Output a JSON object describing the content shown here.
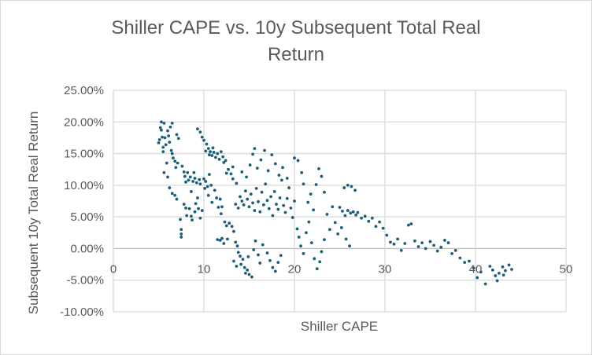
{
  "chart_data": {
    "type": "scatter",
    "title": "Shiller CAPE vs. 10y Subsequent Total Real Return",
    "title_lines": [
      "Shiller CAPE vs. 10y Subsequent Total Real",
      "Return"
    ],
    "xlabel": "Shiller CAPE",
    "ylabel": "Subsequent 10y Total Real Return",
    "xlim": [
      0,
      50
    ],
    "ylim": [
      -10,
      25
    ],
    "x_ticks": [
      "0",
      "10",
      "20",
      "30",
      "40",
      "50"
    ],
    "y_ticks": [
      "-10.00%",
      "-5.00%",
      "0.00%",
      "5.00%",
      "10.00%",
      "15.00%",
      "20.00%",
      "25.00%"
    ],
    "grid": true,
    "legend": "none",
    "color": "#1b5e7b",
    "series": [
      {
        "name": "Subsequent 10y Total Real Return",
        "points": [
          [
            5.0,
            16.7
          ],
          [
            5.1,
            17.2
          ],
          [
            5.2,
            19.1
          ],
          [
            5.3,
            20.0
          ],
          [
            5.3,
            18.7
          ],
          [
            5.4,
            17.6
          ],
          [
            5.5,
            16.0
          ],
          [
            5.5,
            15.3
          ],
          [
            5.6,
            19.8
          ],
          [
            5.7,
            17.5
          ],
          [
            5.8,
            16.4
          ],
          [
            5.9,
            13.5
          ],
          [
            5.6,
            12.0
          ],
          [
            6.0,
            18.6
          ],
          [
            6.1,
            17.8
          ],
          [
            6.2,
            16.8
          ],
          [
            6.3,
            19.2
          ],
          [
            6.5,
            19.8
          ],
          [
            6.4,
            15.5
          ],
          [
            6.5,
            15.0
          ],
          [
            6.6,
            14.3
          ],
          [
            6.8,
            13.8
          ],
          [
            6.9,
            12.8
          ],
          [
            7.0,
            18.0
          ],
          [
            7.2,
            17.4
          ],
          [
            7.1,
            13.5
          ],
          [
            6.0,
            11.3
          ],
          [
            6.2,
            9.6
          ],
          [
            6.5,
            8.7
          ],
          [
            6.8,
            8.4
          ],
          [
            7.0,
            7.8
          ],
          [
            7.4,
            4.6
          ],
          [
            7.5,
            3.0
          ],
          [
            7.5,
            2.3
          ],
          [
            7.5,
            1.8
          ],
          [
            7.6,
            13.0
          ],
          [
            7.8,
            12.1
          ],
          [
            7.9,
            11.4
          ],
          [
            8.0,
            10.5
          ],
          [
            8.2,
            12.0
          ],
          [
            8.3,
            10.8
          ],
          [
            8.5,
            11.3
          ],
          [
            8.6,
            9.0
          ],
          [
            8.8,
            10.6
          ],
          [
            8.9,
            12.0
          ],
          [
            9.0,
            11.1
          ],
          [
            9.2,
            10.4
          ],
          [
            9.3,
            8.0
          ],
          [
            9.5,
            10.9
          ],
          [
            9.6,
            10.2
          ],
          [
            7.8,
            7.0
          ],
          [
            8.0,
            6.4
          ],
          [
            8.1,
            5.2
          ],
          [
            8.4,
            6.3
          ],
          [
            8.6,
            5.1
          ],
          [
            8.7,
            4.5
          ],
          [
            9.0,
            5.8
          ],
          [
            9.1,
            7.1
          ],
          [
            9.4,
            6.3
          ],
          [
            9.6,
            4.8
          ],
          [
            9.8,
            6.0
          ],
          [
            10.0,
            11.0
          ],
          [
            10.1,
            9.5
          ],
          [
            10.2,
            10.6
          ],
          [
            10.4,
            9.8
          ],
          [
            10.5,
            8.4
          ],
          [
            10.6,
            11.7
          ],
          [
            10.8,
            10.0
          ],
          [
            10.9,
            7.3
          ],
          [
            11.2,
            9.2
          ],
          [
            11.4,
            8.0
          ],
          [
            11.6,
            6.5
          ],
          [
            11.8,
            7.8
          ],
          [
            11.9,
            5.5
          ],
          [
            12.0,
            6.6
          ],
          [
            9.3,
            18.9
          ],
          [
            9.6,
            18.4
          ],
          [
            9.8,
            17.6
          ],
          [
            10.0,
            17.1
          ],
          [
            10.3,
            16.5
          ],
          [
            10.5,
            15.8
          ],
          [
            10.7,
            15.3
          ],
          [
            10.9,
            14.7
          ],
          [
            11.1,
            15.2
          ],
          [
            11.3,
            14.4
          ],
          [
            11.5,
            15.0
          ],
          [
            11.7,
            14.1
          ],
          [
            11.9,
            15.3
          ],
          [
            12.1,
            14.5
          ],
          [
            12.2,
            13.6
          ],
          [
            10.2,
            15.4
          ],
          [
            10.6,
            14.8
          ],
          [
            11.0,
            15.9
          ],
          [
            12.4,
            13.9
          ],
          [
            12.5,
            11.9
          ],
          [
            12.7,
            12.5
          ],
          [
            13.0,
            11.8
          ],
          [
            13.2,
            12.9
          ],
          [
            12.3,
            4.2
          ],
          [
            12.5,
            3.6
          ],
          [
            12.8,
            4.0
          ],
          [
            13.1,
            3.5
          ],
          [
            13.3,
            2.7
          ],
          [
            12.0,
            1.6
          ],
          [
            11.8,
            1.3
          ],
          [
            12.2,
            0.8
          ],
          [
            12.6,
            1.5
          ],
          [
            11.5,
            1.4
          ],
          [
            13.5,
            1.0
          ],
          [
            13.7,
            0.4
          ],
          [
            13.8,
            -0.6
          ],
          [
            14.0,
            -1.2
          ],
          [
            14.1,
            -2.5
          ],
          [
            14.3,
            -1.7
          ],
          [
            14.5,
            -3.0
          ],
          [
            14.6,
            -3.9
          ],
          [
            14.8,
            -3.4
          ],
          [
            15.0,
            -4.1
          ],
          [
            15.3,
            -4.5
          ],
          [
            13.3,
            -2.0
          ],
          [
            13.6,
            -2.8
          ],
          [
            14.9,
            -1.3
          ],
          [
            15.5,
            -0.2
          ],
          [
            15.7,
            1.2
          ],
          [
            16.0,
            -1.0
          ],
          [
            16.2,
            -2.3
          ],
          [
            16.5,
            0.6
          ],
          [
            17.0,
            -0.7
          ],
          [
            17.3,
            -1.9
          ],
          [
            17.6,
            -3.0
          ],
          [
            17.9,
            -3.6
          ],
          [
            18.2,
            -2.2
          ],
          [
            18.5,
            -1.1
          ],
          [
            13.5,
            7.0
          ],
          [
            13.8,
            6.4
          ],
          [
            14.0,
            8.2
          ],
          [
            14.2,
            7.5
          ],
          [
            14.4,
            6.9
          ],
          [
            14.6,
            9.1
          ],
          [
            14.8,
            7.8
          ],
          [
            15.0,
            6.6
          ],
          [
            15.2,
            8.6
          ],
          [
            15.4,
            7.2
          ],
          [
            15.6,
            6.0
          ],
          [
            15.8,
            9.5
          ],
          [
            16.0,
            7.4
          ],
          [
            16.2,
            5.8
          ],
          [
            16.4,
            8.9
          ],
          [
            16.6,
            6.9
          ],
          [
            16.8,
            10.2
          ],
          [
            17.0,
            7.6
          ],
          [
            17.2,
            6.3
          ],
          [
            17.4,
            8.2
          ],
          [
            17.6,
            5.2
          ],
          [
            17.8,
            9.0
          ],
          [
            18.0,
            7.0
          ],
          [
            18.2,
            6.2
          ],
          [
            18.4,
            8.0
          ],
          [
            18.6,
            10.8
          ],
          [
            18.8,
            6.8
          ],
          [
            19.0,
            5.7
          ],
          [
            19.2,
            7.9
          ],
          [
            19.4,
            9.6
          ],
          [
            19.6,
            6.4
          ],
          [
            19.8,
            4.9
          ],
          [
            20.0,
            7.5
          ],
          [
            13.2,
            11.0
          ],
          [
            13.6,
            10.3
          ],
          [
            14.2,
            12.1
          ],
          [
            14.7,
            11.3
          ],
          [
            15.1,
            13.2
          ],
          [
            15.4,
            14.9
          ],
          [
            15.6,
            15.8
          ],
          [
            15.9,
            12.7
          ],
          [
            16.3,
            14.0
          ],
          [
            16.7,
            15.5
          ],
          [
            17.1,
            12.3
          ],
          [
            17.5,
            14.8
          ],
          [
            17.9,
            13.4
          ],
          [
            18.3,
            11.6
          ],
          [
            18.7,
            12.8
          ],
          [
            19.2,
            11.1
          ],
          [
            20.0,
            14.3
          ],
          [
            20.4,
            13.9
          ],
          [
            20.8,
            12.0
          ],
          [
            21.0,
            10.2
          ],
          [
            20.3,
            3.1
          ],
          [
            20.5,
            1.8
          ],
          [
            20.7,
            0.4
          ],
          [
            21.0,
            -0.8
          ],
          [
            21.3,
            2.5
          ],
          [
            21.6,
            4.2
          ],
          [
            21.9,
            0.9
          ],
          [
            22.2,
            -1.6
          ],
          [
            22.5,
            -3.2
          ],
          [
            22.8,
            -2.1
          ],
          [
            23.0,
            -0.5
          ],
          [
            23.3,
            1.4
          ],
          [
            21.5,
            7.3
          ],
          [
            21.8,
            8.6
          ],
          [
            22.1,
            6.1
          ],
          [
            22.4,
            10.1
          ],
          [
            22.7,
            12.6
          ],
          [
            23.0,
            11.4
          ],
          [
            23.3,
            8.9
          ],
          [
            23.6,
            5.4
          ],
          [
            23.9,
            3.0
          ],
          [
            24.2,
            6.6
          ],
          [
            24.5,
            4.1
          ],
          [
            24.8,
            2.3
          ],
          [
            25.0,
            6.5
          ],
          [
            25.3,
            5.9
          ],
          [
            25.6,
            5.2
          ],
          [
            25.9,
            6.0
          ],
          [
            26.2,
            5.6
          ],
          [
            26.5,
            5.8
          ],
          [
            26.8,
            5.3
          ],
          [
            27.0,
            5.7
          ],
          [
            25.5,
            9.6
          ],
          [
            25.9,
            10.0
          ],
          [
            26.3,
            9.8
          ],
          [
            26.7,
            9.2
          ],
          [
            25.2,
            3.3
          ],
          [
            25.7,
            1.5
          ],
          [
            26.1,
            0.4
          ],
          [
            27.4,
            4.8
          ],
          [
            27.8,
            5.1
          ],
          [
            28.2,
            4.3
          ],
          [
            28.6,
            4.8
          ],
          [
            29.0,
            3.5
          ],
          [
            29.4,
            4.2
          ],
          [
            29.8,
            3.2
          ],
          [
            30.2,
            2.1
          ],
          [
            30.6,
            1.0
          ],
          [
            31.0,
            0.7
          ],
          [
            31.4,
            1.5
          ],
          [
            31.8,
            -0.3
          ],
          [
            32.2,
            0.8
          ],
          [
            32.6,
            3.7
          ],
          [
            32.9,
            3.9
          ],
          [
            33.3,
            1.2
          ],
          [
            33.7,
            0.3
          ],
          [
            34.1,
            0.9
          ],
          [
            34.5,
            0.0
          ],
          [
            35.0,
            1.1
          ],
          [
            35.4,
            0.5
          ],
          [
            35.8,
            -0.4
          ],
          [
            36.2,
            0.2
          ],
          [
            36.6,
            1.3
          ],
          [
            37.0,
            0.9
          ],
          [
            37.4,
            -0.8
          ],
          [
            37.8,
            -0.3
          ],
          [
            38.3,
            -1.5
          ],
          [
            38.8,
            -2.2
          ],
          [
            39.3,
            -2.0
          ],
          [
            39.8,
            -3.1
          ],
          [
            40.2,
            -4.6
          ],
          [
            40.6,
            -3.7
          ],
          [
            41.1,
            -5.6
          ],
          [
            41.6,
            -2.8
          ],
          [
            41.9,
            -3.4
          ],
          [
            42.2,
            -4.3
          ],
          [
            42.6,
            -3.9
          ],
          [
            43.0,
            -2.9
          ],
          [
            43.3,
            -3.5
          ],
          [
            43.7,
            -2.6
          ],
          [
            44.0,
            -3.3
          ],
          [
            42.4,
            -5.1
          ],
          [
            43.1,
            -4.2
          ]
        ]
      }
    ]
  }
}
